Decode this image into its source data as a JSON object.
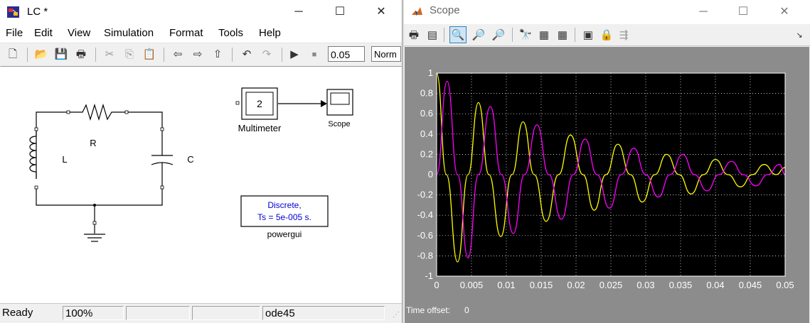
{
  "lc_window": {
    "title": "LC *",
    "menu": [
      "File",
      "Edit",
      "View",
      "Simulation",
      "Format",
      "Tools",
      "Help"
    ],
    "stop_time": "0.05",
    "sim_mode": "Norm",
    "blocks": {
      "resistor_label": "R",
      "inductor_label": "L",
      "capacitor_label": "C",
      "multimeter_value": "2",
      "multimeter_label": "Multimeter",
      "scope_label": "Scope",
      "powergui_line1": "Discrete,",
      "powergui_line2": "Ts = 5e-005 s.",
      "powergui_label": "powergui"
    },
    "status": {
      "state": "Ready",
      "zoom": "100%",
      "solver": "ode45"
    }
  },
  "scope_window": {
    "title": "Scope",
    "time_offset_label": "Time offset:",
    "time_offset_value": "0"
  },
  "chart_data": {
    "type": "line",
    "title": "",
    "xlabel": "",
    "ylabel": "",
    "xlim": [
      0,
      0.05
    ],
    "ylim": [
      -1,
      1
    ],
    "x_ticks": [
      "0",
      "0.005",
      "0.01",
      "0.015",
      "0.02",
      "0.025",
      "0.03",
      "0.035",
      "0.04",
      "0.045",
      "0.05"
    ],
    "y_ticks": [
      "1",
      "0.8",
      "0.6",
      "0.4",
      "0.2",
      "0",
      "-0.2",
      "-0.4",
      "-0.6",
      "-0.8",
      "-1"
    ],
    "grid": true,
    "background": "#000000",
    "series": [
      {
        "color": "#ffff00",
        "x": [
          0,
          0.0014,
          0.003,
          0.0045,
          0.006,
          0.0075,
          0.0092,
          0.0108,
          0.0124,
          0.014,
          0.0157,
          0.0175,
          0.0192,
          0.021,
          0.0226,
          0.0243,
          0.026,
          0.0278,
          0.0295,
          0.0313,
          0.033,
          0.0348,
          0.0365,
          0.0383,
          0.04,
          0.0418,
          0.0436,
          0.0453,
          0.047,
          0.0487,
          0.05
        ],
        "y": [
          1.0,
          0.0,
          -0.86,
          0.0,
          0.71,
          0.0,
          -0.61,
          0.0,
          0.52,
          0.0,
          -0.46,
          0.0,
          0.39,
          0.0,
          -0.35,
          0.0,
          0.3,
          0.0,
          -0.27,
          0.0,
          0.2,
          0.0,
          -0.19,
          0.0,
          0.15,
          0.0,
          -0.12,
          0.0,
          0.1,
          0.0,
          0.07
        ]
      },
      {
        "color": "#ff00ff",
        "x": [
          0,
          0.0015,
          0.003,
          0.0045,
          0.006,
          0.0077,
          0.0093,
          0.011,
          0.0126,
          0.0144,
          0.0161,
          0.0179,
          0.0196,
          0.0213,
          0.023,
          0.0248,
          0.0265,
          0.0283,
          0.03,
          0.0318,
          0.0335,
          0.0353,
          0.037,
          0.0388,
          0.0405,
          0.0423,
          0.044,
          0.0458,
          0.0475,
          0.0492,
          0.05
        ],
        "y": [
          0.0,
          0.92,
          0.0,
          -0.82,
          0.0,
          0.67,
          0.0,
          -0.58,
          0.0,
          0.49,
          0.0,
          -0.44,
          0.0,
          0.35,
          0.0,
          -0.33,
          0.0,
          0.26,
          0.0,
          -0.22,
          0.0,
          0.2,
          0.0,
          -0.16,
          0.0,
          0.13,
          0.0,
          -0.11,
          0.0,
          0.1,
          0.0
        ]
      }
    ]
  }
}
